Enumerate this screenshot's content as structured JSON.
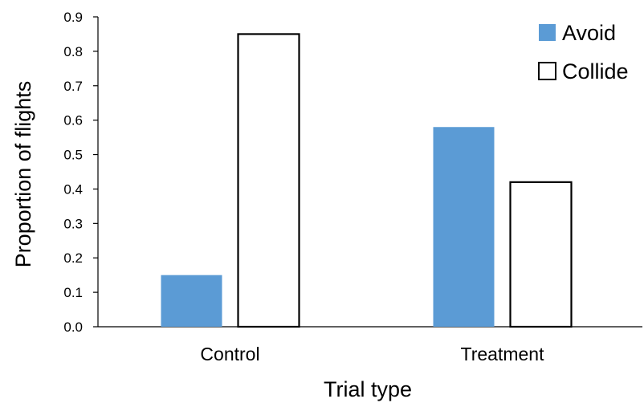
{
  "chart_data": {
    "type": "bar",
    "categories": [
      "Control",
      "Treatment"
    ],
    "series": [
      {
        "name": "Avoid",
        "values": [
          0.15,
          0.58
        ],
        "color": "#5b9bd5",
        "fill": "solid"
      },
      {
        "name": "Collide",
        "values": [
          0.85,
          0.42
        ],
        "color": "#000000",
        "fill": "none"
      }
    ],
    "xlabel": "Trial type",
    "ylabel": "Proportion of flights",
    "ylim": [
      0,
      0.9
    ],
    "yticks": [
      "0.0",
      "0.1",
      "0.2",
      "0.3",
      "0.4",
      "0.5",
      "0.6",
      "0.7",
      "0.8",
      "0.9"
    ],
    "grid": false,
    "legend_position": "top-right"
  }
}
